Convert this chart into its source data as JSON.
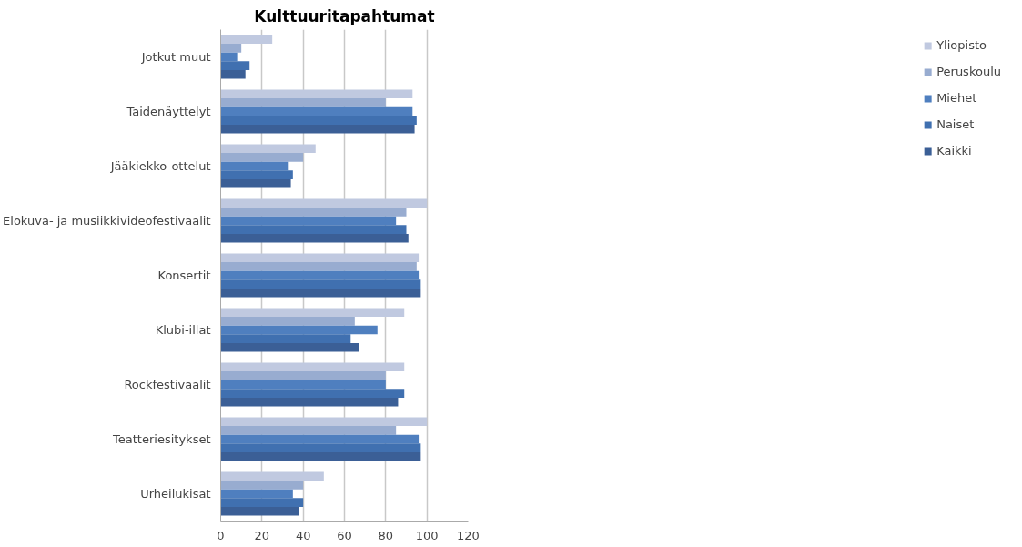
{
  "chart_data": {
    "type": "bar",
    "orientation": "horizontal",
    "title": "Kulttuuritapahtumat",
    "categories": [
      "Jotkut muut",
      "Taidenäyttelyt",
      "Jääkiekko-ottelut",
      "Elokuva- ja musiikkivideofestivaalit",
      "Konsertit",
      "Klubi-illat",
      "Rockfestivaalit",
      "Teatteriesitykset",
      "Urheilukisat"
    ],
    "series": [
      {
        "name": "Yliopisto",
        "color": "#c0c9e0",
        "values": [
          25,
          93,
          46,
          100,
          96,
          89,
          89,
          100,
          50
        ]
      },
      {
        "name": "Peruskoulu",
        "color": "#98acd0",
        "values": [
          10,
          80,
          40,
          90,
          95,
          65,
          80,
          85,
          40
        ]
      },
      {
        "name": "Miehet",
        "color": "#4f7fbf",
        "values": [
          8,
          93,
          33,
          85,
          96,
          76,
          80,
          96,
          35
        ]
      },
      {
        "name": "Naiset",
        "color": "#4070b0",
        "values": [
          14,
          95,
          35,
          90,
          97,
          63,
          89,
          97,
          40
        ]
      },
      {
        "name": "Kaikki",
        "color": "#3b5f96",
        "values": [
          12,
          94,
          34,
          91,
          97,
          67,
          86,
          97,
          38
        ]
      }
    ],
    "xlim": [
      0,
      120
    ],
    "xticks": [
      0,
      20,
      40,
      60,
      80,
      100,
      120
    ],
    "grid": "x",
    "legend": "right"
  }
}
